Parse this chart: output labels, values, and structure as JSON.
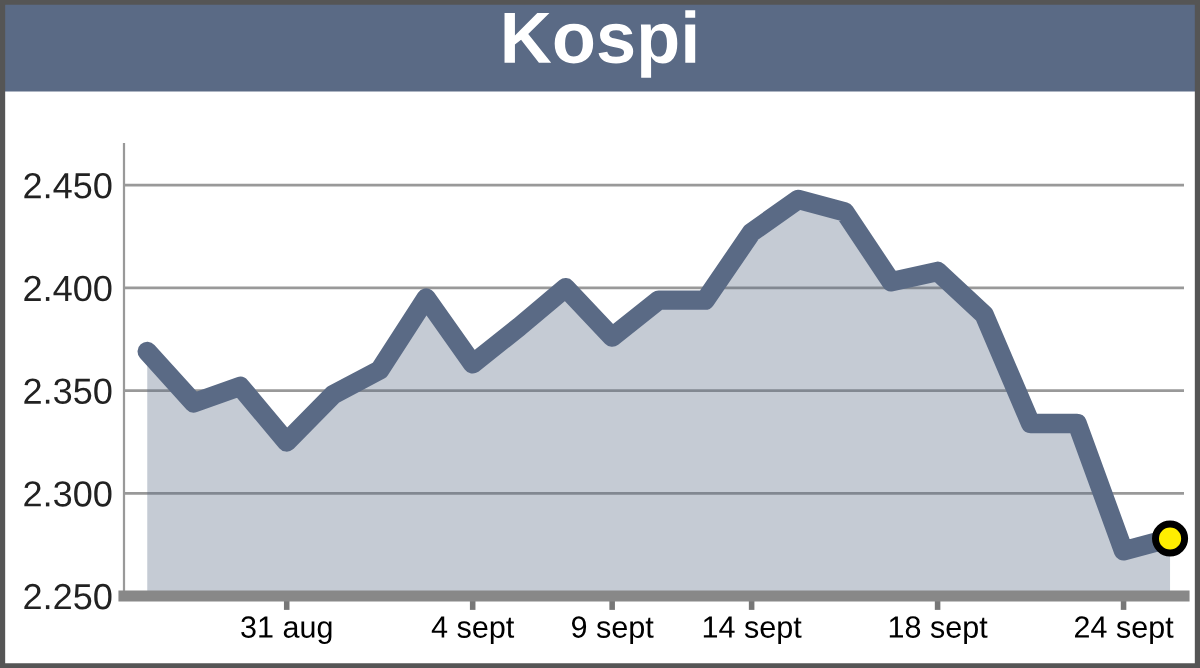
{
  "chart_data": {
    "type": "area",
    "title": "Kospi",
    "categories": [
      null,
      null,
      null,
      "31 aug",
      null,
      null,
      null,
      "4 sept",
      null,
      null,
      "9 sept",
      null,
      null,
      "14 sept",
      null,
      null,
      null,
      "18 sept",
      null,
      null,
      null,
      "24 sept",
      null
    ],
    "series": [
      {
        "color": "#5a6a85",
        "values": [
          2.369,
          2.344,
          2.352,
          2.325,
          2.348,
          2.36,
          2.395,
          2.363,
          2.381,
          2.4,
          2.376,
          2.394,
          2.394,
          2.427,
          2.443,
          2.437,
          2.403,
          2.408,
          2.387,
          2.334,
          2.334,
          2.272,
          2.278
        ]
      },
      {
        "type": "scatter",
        "color": "#ffee00",
        "marker": "circle",
        "values": [
          null,
          null,
          null,
          null,
          null,
          null,
          null,
          null,
          null,
          null,
          null,
          null,
          null,
          null,
          null,
          null,
          null,
          null,
          null,
          null,
          null,
          null,
          2.278
        ]
      }
    ],
    "ylim": [
      2.25,
      2.47
    ],
    "yticks": [
      {
        "value": 2.25,
        "label": "2.250"
      },
      {
        "value": 2.3,
        "label": "2.300"
      },
      {
        "value": 2.35,
        "label": "2.350"
      },
      {
        "value": 2.4,
        "label": "2.400"
      },
      {
        "value": 2.45,
        "label": "2.450"
      }
    ],
    "grid": "y"
  }
}
